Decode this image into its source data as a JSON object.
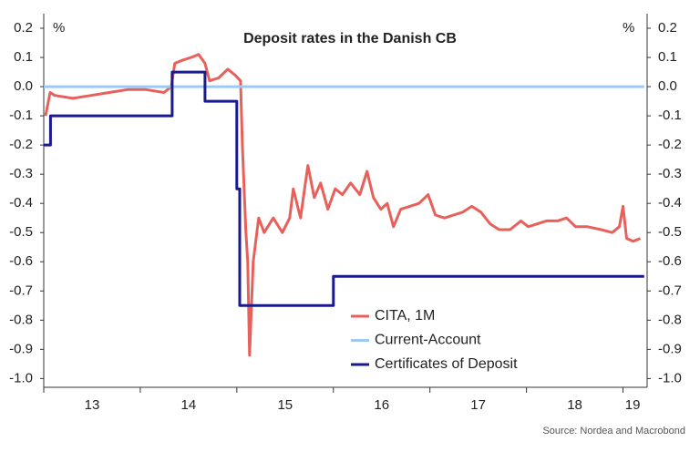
{
  "chart_data": {
    "type": "line",
    "title": "Deposit rates in the Danish CB",
    "y_unit_left": "%",
    "y_unit_right": "%",
    "source": "Source: Nordea and Macrobond",
    "xlim": [
      2013.0,
      2019.25
    ],
    "xticks": [
      {
        "value": 2013.5,
        "label": "13"
      },
      {
        "value": 2014.5,
        "label": "14"
      },
      {
        "value": 2015.5,
        "label": "15"
      },
      {
        "value": 2016.5,
        "label": "16"
      },
      {
        "value": 2017.5,
        "label": "17"
      },
      {
        "value": 2018.5,
        "label": "18"
      },
      {
        "value": 2019.1,
        "label": "19"
      }
    ],
    "ylim": [
      -1.03,
      0.25
    ],
    "yticks": [
      0.2,
      0.1,
      {
        "value": 0,
        "label": "0.0"
      },
      -0.1,
      -0.2,
      -0.3,
      -0.4,
      -0.5,
      -0.6,
      -0.7,
      -0.8,
      -0.9,
      {
        "value": -1,
        "label": "-1.0"
      }
    ],
    "grid": false,
    "legend": "lower-center",
    "series": [
      {
        "name": "CITA, 1M",
        "color": "#e8605a",
        "width": 3,
        "x": [
          2013.019,
          2013.066,
          2013.113,
          2013.302,
          2013.491,
          2013.679,
          2013.868,
          2014.057,
          2014.245,
          2014.321,
          2014.358,
          2014.434,
          2014.528,
          2014.604,
          2014.67,
          2014.717,
          2014.811,
          2014.906,
          2014.981,
          2015.038,
          2015.057,
          2015.094,
          2015.113,
          2015.132,
          2015.17,
          2015.226,
          2015.283,
          2015.377,
          2015.472,
          2015.547,
          2015.585,
          2015.66,
          2015.736,
          2015.802,
          2015.868,
          2015.943,
          2016.019,
          2016.094,
          2016.179,
          2016.274,
          2016.349,
          2016.415,
          2016.491,
          2016.557,
          2016.623,
          2016.698,
          2016.792,
          2016.887,
          2016.981,
          2017.057,
          2017.151,
          2017.245,
          2017.34,
          2017.434,
          2017.528,
          2017.623,
          2017.717,
          2017.83,
          2017.943,
          2018.019,
          2018.113,
          2018.208,
          2018.321,
          2018.415,
          2018.509,
          2018.632,
          2018.774,
          2018.887,
          2018.962,
          2019.0,
          2019.038,
          2019.104,
          2019.179
        ],
        "values": [
          -0.1,
          -0.02,
          -0.03,
          -0.04,
          -0.03,
          -0.02,
          -0.01,
          -0.01,
          -0.02,
          0.0,
          0.08,
          0.09,
          0.1,
          0.11,
          0.08,
          0.02,
          0.03,
          0.06,
          0.04,
          0.02,
          -0.2,
          -0.5,
          -0.6,
          -0.92,
          -0.6,
          -0.45,
          -0.5,
          -0.45,
          -0.5,
          -0.45,
          -0.35,
          -0.45,
          -0.27,
          -0.38,
          -0.33,
          -0.42,
          -0.35,
          -0.37,
          -0.33,
          -0.37,
          -0.29,
          -0.38,
          -0.42,
          -0.4,
          -0.48,
          -0.42,
          -0.41,
          -0.4,
          -0.37,
          -0.44,
          -0.45,
          -0.44,
          -0.43,
          -0.41,
          -0.43,
          -0.47,
          -0.49,
          -0.49,
          -0.46,
          -0.48,
          -0.47,
          -0.46,
          -0.46,
          -0.45,
          -0.48,
          -0.48,
          -0.49,
          -0.5,
          -0.48,
          -0.41,
          -0.52,
          -0.53,
          -0.52
        ]
      },
      {
        "name": "Current-Account",
        "color": "#9ec9f3",
        "width": 3,
        "x": [
          2013.0,
          2019.22
        ],
        "values": [
          0,
          0
        ]
      },
      {
        "name": "Certificates of Deposit",
        "color": "#1a1a8c",
        "width": 3,
        "x": [
          2013.0,
          2013.07,
          2013.07,
          2014.33,
          2014.33,
          2014.67,
          2014.67,
          2015.0,
          2015.0,
          2015.03,
          2015.03,
          2016.0,
          2016.0,
          2019.22
        ],
        "values": [
          -0.2,
          -0.2,
          -0.1,
          -0.1,
          0.05,
          0.05,
          -0.05,
          -0.05,
          -0.35,
          -0.35,
          -0.75,
          -0.75,
          -0.65,
          -0.65
        ]
      }
    ]
  }
}
